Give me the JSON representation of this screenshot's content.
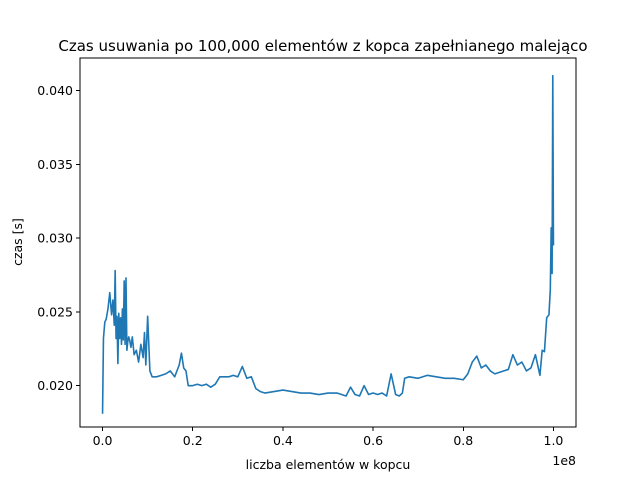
{
  "chart_data": {
    "type": "line",
    "title": "Czas usuwania po 100,000 elementów z kopca zapełnianego malejąco",
    "xlabel": "liczba elementów w kopcu",
    "ylabel": "czas [s]",
    "x_offset_label": "1e8",
    "x_scale_factor": 100000000,
    "xlim": [
      -5000000,
      105000000
    ],
    "ylim": [
      0.0172,
      0.0422
    ],
    "x_ticks": [
      0,
      20000000,
      40000000,
      60000000,
      80000000,
      100000000
    ],
    "x_tick_labels": [
      "0.0",
      "0.2",
      "0.4",
      "0.6",
      "0.8",
      "1.0"
    ],
    "y_ticks": [
      0.02,
      0.025,
      0.03,
      0.035,
      0.04
    ],
    "y_tick_labels": [
      "0.020",
      "0.025",
      "0.030",
      "0.035",
      "0.040"
    ],
    "grid": false,
    "legend": null,
    "series": [
      {
        "color": "#1f77b4",
        "x": [
          0,
          200000,
          500000,
          800000,
          1200000,
          1600000,
          2000000,
          2300000,
          2600000,
          2800000,
          3000000,
          3200000,
          3400000,
          3600000,
          3800000,
          4000000,
          4200000,
          4400000,
          4600000,
          4800000,
          5000000,
          5200000,
          5400000,
          5600000,
          5800000,
          6000000,
          6300000,
          6600000,
          7000000,
          7500000,
          8000000,
          8500000,
          9000000,
          9300000,
          9600000,
          10000000,
          10500000,
          11000000,
          12000000,
          13000000,
          14000000,
          15000000,
          16000000,
          17000000,
          17500000,
          18000000,
          18500000,
          19000000,
          20000000,
          21000000,
          22000000,
          23000000,
          24000000,
          25000000,
          26000000,
          27000000,
          28000000,
          29000000,
          30000000,
          31000000,
          32000000,
          33000000,
          34000000,
          35000000,
          36000000,
          38000000,
          40000000,
          42000000,
          44000000,
          46000000,
          48000000,
          50000000,
          52000000,
          54000000,
          55000000,
          56000000,
          57000000,
          58000000,
          59000000,
          60000000,
          61000000,
          62000000,
          63000000,
          64000000,
          65000000,
          65800000,
          66500000,
          67000000,
          68000000,
          70000000,
          72000000,
          74000000,
          76000000,
          78000000,
          80000000,
          81000000,
          82000000,
          83000000,
          84000000,
          85000000,
          86000000,
          87000000,
          88000000,
          89000000,
          90000000,
          91000000,
          92000000,
          93000000,
          94000000,
          95000000,
          96000000,
          97000000,
          97500000,
          98000000,
          98500000,
          99000000,
          99300000,
          99500000,
          99700000,
          99850000,
          100000000
        ],
        "y": [
          0.0181,
          0.0232,
          0.0243,
          0.0245,
          0.0252,
          0.0263,
          0.0248,
          0.0258,
          0.0241,
          0.0278,
          0.0232,
          0.0247,
          0.0215,
          0.0249,
          0.0232,
          0.0246,
          0.0228,
          0.0252,
          0.0231,
          0.0271,
          0.0228,
          0.0273,
          0.0224,
          0.023,
          0.0233,
          0.0231,
          0.0226,
          0.0233,
          0.0221,
          0.0224,
          0.0216,
          0.0228,
          0.0219,
          0.0236,
          0.0214,
          0.0247,
          0.021,
          0.0206,
          0.0206,
          0.0207,
          0.0208,
          0.021,
          0.0206,
          0.0214,
          0.0222,
          0.0212,
          0.021,
          0.02,
          0.02,
          0.0201,
          0.02,
          0.0201,
          0.0199,
          0.0201,
          0.0206,
          0.0206,
          0.0206,
          0.0207,
          0.0206,
          0.0213,
          0.0205,
          0.0206,
          0.0198,
          0.0196,
          0.0195,
          0.0196,
          0.0197,
          0.0196,
          0.0195,
          0.0195,
          0.0194,
          0.0195,
          0.0195,
          0.0193,
          0.0199,
          0.0194,
          0.0193,
          0.02,
          0.0194,
          0.0195,
          0.0194,
          0.0195,
          0.0193,
          0.0208,
          0.0194,
          0.0193,
          0.0195,
          0.0205,
          0.0206,
          0.0205,
          0.0207,
          0.0206,
          0.0205,
          0.0205,
          0.0204,
          0.0208,
          0.0216,
          0.022,
          0.0212,
          0.0214,
          0.021,
          0.0208,
          0.0209,
          0.021,
          0.0211,
          0.0221,
          0.0214,
          0.0216,
          0.021,
          0.0212,
          0.0221,
          0.0207,
          0.0224,
          0.0223,
          0.0246,
          0.0248,
          0.0265,
          0.0307,
          0.0276,
          0.041,
          0.0295
        ]
      }
    ]
  }
}
